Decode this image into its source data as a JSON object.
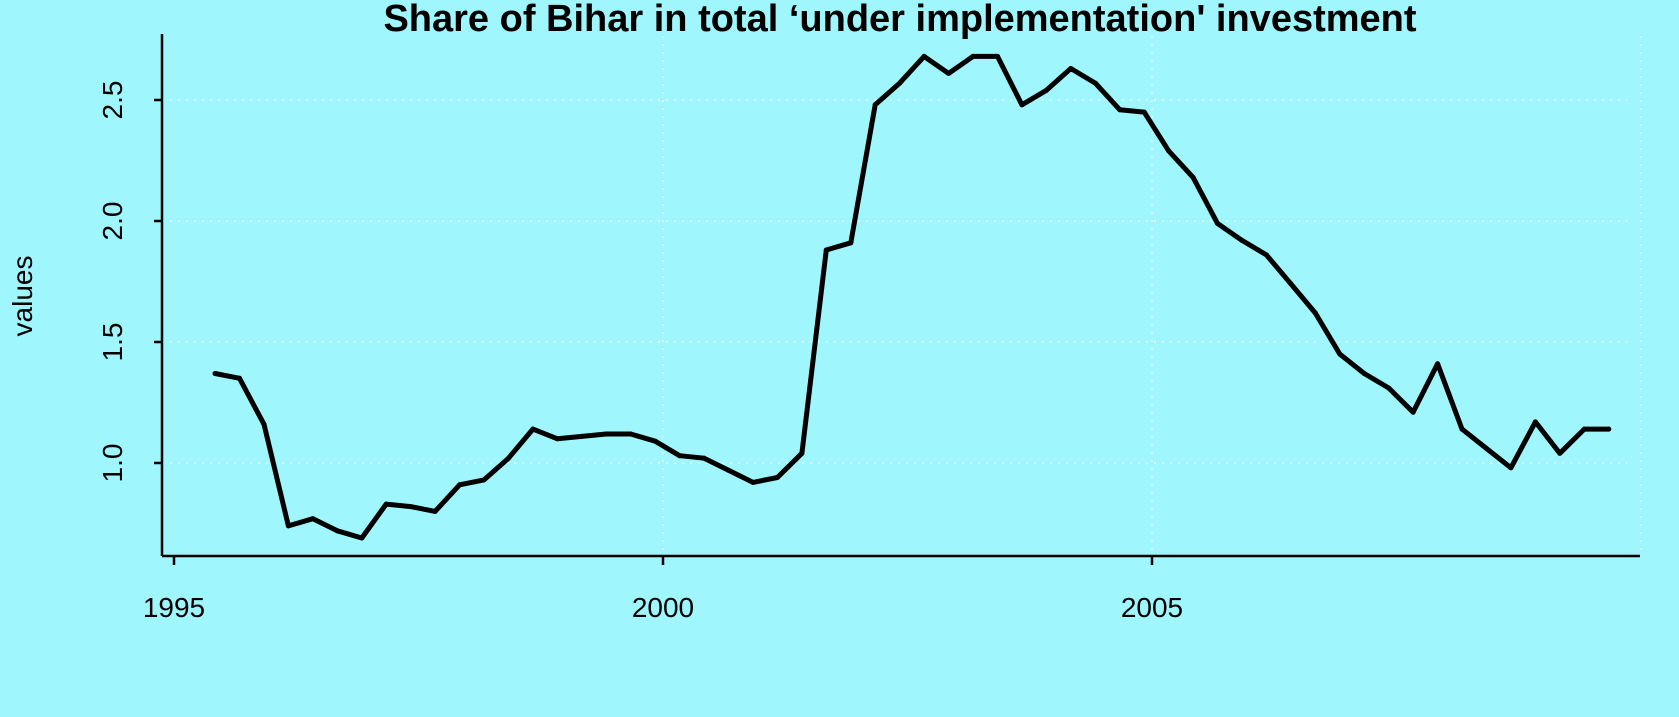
{
  "colors": {
    "background": "#9ff6fd",
    "line": "#000000",
    "grid": "#d9f7fa"
  },
  "chart_data": {
    "type": "line",
    "title": "Share of Bihar in total ‘under implementation' investment",
    "xlabel": "",
    "ylabel": "values",
    "xlim": [
      1994.85,
      2010.0
    ],
    "ylim": [
      0.62,
      2.78
    ],
    "x_ticks": [
      1995,
      2000,
      2005
    ],
    "x_tick_labels": [
      "1995",
      "2000",
      "2005"
    ],
    "y_ticks": [
      1.0,
      1.5,
      2.0,
      2.5
    ],
    "y_tick_labels": [
      "1.0",
      "1.5",
      "2.0",
      "2.5"
    ],
    "grid": true,
    "grid_style": "dotted",
    "series": [
      {
        "x": [
          1995.42,
          1995.67,
          1995.92,
          1996.17,
          1996.42,
          1996.67,
          1996.92,
          1997.17,
          1997.42,
          1997.67,
          1997.92,
          1998.17,
          1998.42,
          1998.67,
          1998.92,
          1999.17,
          1999.42,
          1999.67,
          1999.92,
          2000.17,
          2000.42,
          2000.67,
          2000.92,
          2001.17,
          2001.42,
          2001.67,
          2001.92,
          2002.17,
          2002.42,
          2002.67,
          2002.92,
          2003.17,
          2003.42,
          2003.67,
          2003.92,
          2004.17,
          2004.42,
          2004.67,
          2004.92,
          2005.17,
          2005.42,
          2005.67,
          2005.92,
          2006.17,
          2006.42,
          2006.67,
          2006.92,
          2007.17,
          2007.42,
          2007.67,
          2007.92,
          2008.17,
          2008.42,
          2008.67,
          2008.92,
          2009.17,
          2009.42,
          2009.67
        ],
        "values": [
          1.37,
          1.35,
          1.16,
          0.74,
          0.77,
          0.72,
          0.69,
          0.83,
          0.82,
          0.8,
          0.91,
          0.93,
          1.02,
          1.14,
          1.1,
          1.11,
          1.12,
          1.12,
          1.09,
          1.03,
          1.02,
          0.97,
          0.92,
          0.94,
          1.04,
          1.88,
          1.91,
          2.48,
          2.57,
          2.68,
          2.61,
          2.68,
          2.68,
          2.48,
          2.54,
          2.63,
          2.57,
          2.46,
          2.45,
          2.29,
          2.18,
          1.99,
          1.92,
          1.86,
          1.74,
          1.62,
          1.45,
          1.37,
          1.31,
          1.21,
          1.41,
          1.14,
          1.06,
          0.98,
          1.17,
          1.04,
          1.14,
          1.14
        ]
      }
    ]
  }
}
